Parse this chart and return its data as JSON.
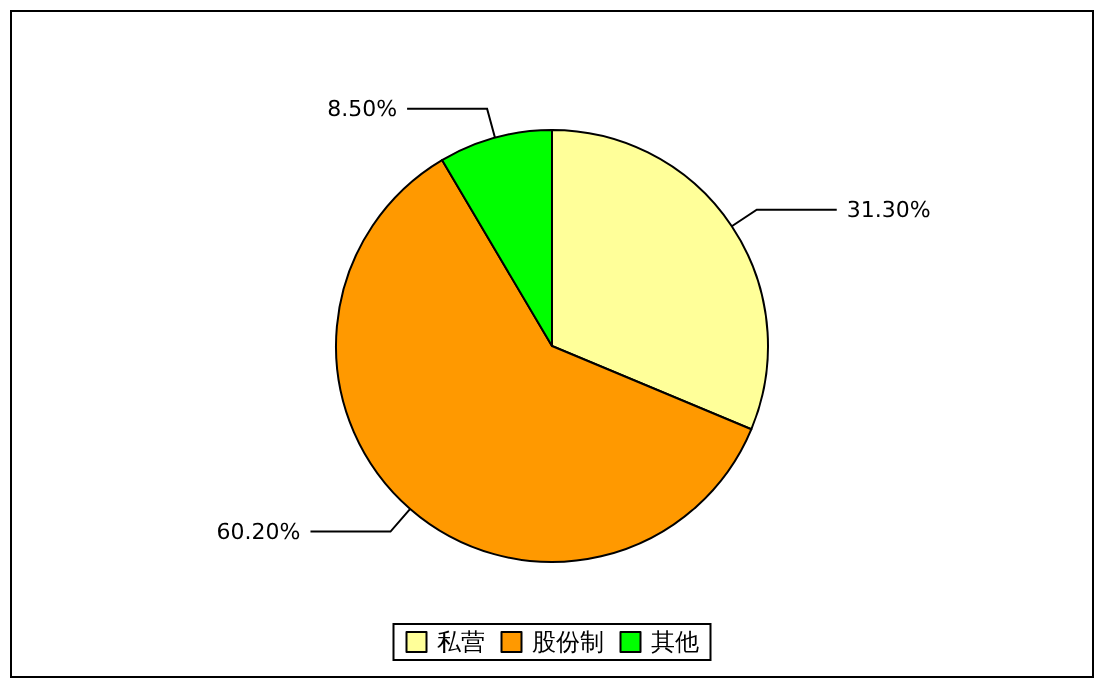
{
  "chart_data": {
    "type": "pie",
    "categories": [
      "私营",
      "股份制",
      "其他"
    ],
    "values": [
      31.3,
      60.2,
      8.5
    ],
    "colors": [
      "#ffff99",
      "#ff9900",
      "#00ff00"
    ],
    "value_labels": [
      "31.30%",
      "60.20%",
      "8.50%"
    ],
    "legend": "bottom"
  }
}
